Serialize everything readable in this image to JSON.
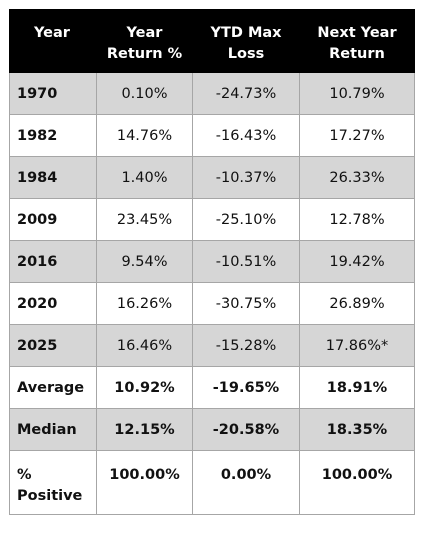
{
  "table": {
    "headers": [
      "Year",
      "Year Return %",
      "YTD Max Loss",
      "Next Year Return"
    ],
    "rows": [
      [
        "1970",
        "0.10%",
        "-24.73%",
        "10.79%"
      ],
      [
        "1982",
        "14.76%",
        "-16.43%",
        "17.27%"
      ],
      [
        "1984",
        "1.40%",
        "-10.37%",
        "26.33%"
      ],
      [
        "2009",
        "23.45%",
        "-25.10%",
        "12.78%"
      ],
      [
        "2016",
        "9.54%",
        "-10.51%",
        "19.42%"
      ],
      [
        "2020",
        "16.26%",
        "-30.75%",
        "26.89%"
      ],
      [
        "2025",
        "16.46%",
        "-15.28%",
        "17.86%*"
      ]
    ],
    "summary": [
      [
        "Average",
        "10.92%",
        "-19.65%",
        "18.91%"
      ],
      [
        "Median",
        "12.15%",
        "-20.58%",
        "18.35%"
      ],
      [
        "% Positive",
        "100.00%",
        "0.00%",
        "100.00%"
      ]
    ]
  },
  "colors": {
    "header_bg": "#000000",
    "header_text": "#ffffff",
    "row_shade": "#d6d6d6",
    "border": "#a6a6a6"
  }
}
